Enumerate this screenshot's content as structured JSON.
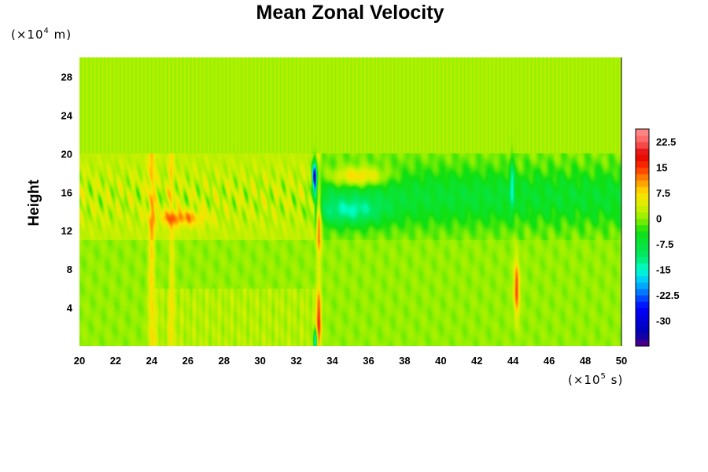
{
  "chart_data": {
    "type": "heatmap",
    "title": "Mean Zonal Velocity",
    "ylabel": "Height",
    "y_unit": {
      "prefix": "(×10",
      "exp": "4",
      "suffix": " m)"
    },
    "x_unit": {
      "prefix": "(×10",
      "exp": "5",
      "suffix": " s)"
    },
    "xlim": [
      20,
      50
    ],
    "ylim": [
      0,
      30
    ],
    "x_ticks": [
      "20",
      "22",
      "24",
      "26",
      "28",
      "30",
      "32",
      "34",
      "36",
      "38",
      "40",
      "42",
      "44",
      "46",
      "48",
      "50"
    ],
    "y_ticks": [
      "4",
      "8",
      "12",
      "16",
      "20",
      "24",
      "28"
    ],
    "colorbar": {
      "range": [
        -37.5,
        26.25
      ],
      "tick_labels": [
        "22.5",
        "15",
        "7.5",
        "0",
        "-7.5",
        "-15",
        "-22.5",
        "-30"
      ],
      "tick_values": [
        22.5,
        15,
        7.5,
        0,
        -7.5,
        -15,
        -22.5,
        -30
      ]
    },
    "colormap": [
      {
        "v": -37.5,
        "c": "#5a0080"
      },
      {
        "v": -33.75,
        "c": "#0000b0"
      },
      {
        "v": -26.25,
        "c": "#0000ff"
      },
      {
        "v": -18.75,
        "c": "#00c0ff"
      },
      {
        "v": -15,
        "c": "#00ffd0"
      },
      {
        "v": -11.25,
        "c": "#00e868"
      },
      {
        "v": -3.75,
        "c": "#10e010"
      },
      {
        "v": 0,
        "c": "#90f000"
      },
      {
        "v": 3.75,
        "c": "#d8f000"
      },
      {
        "v": 7.5,
        "c": "#ffe000"
      },
      {
        "v": 11.25,
        "c": "#ff9000"
      },
      {
        "v": 15,
        "c": "#ff3000"
      },
      {
        "v": 18.75,
        "c": "#e00000"
      },
      {
        "v": 22.5,
        "c": "#ff6060"
      },
      {
        "v": 26.25,
        "c": "#ff9090"
      }
    ],
    "features": [
      {
        "name": "upper-quiet-layer",
        "x": [
          20,
          50
        ],
        "y": [
          20,
          30
        ],
        "value": 1
      },
      {
        "name": "lower-quiet-layer",
        "x": [
          20,
          50
        ],
        "y": [
          0,
          11
        ],
        "value": 0
      },
      {
        "name": "jet-layer-early",
        "x": [
          20,
          33
        ],
        "y": [
          11,
          20
        ],
        "value": 2
      },
      {
        "name": "jet-layer-late",
        "x": [
          33.5,
          50
        ],
        "y": [
          11,
          20
        ],
        "value": -7
      },
      {
        "name": "eastward-maximum",
        "x": 35.5,
        "y": 17.5,
        "value": 14
      },
      {
        "name": "westward-minimum",
        "x": 34.5,
        "y": 14,
        "value": -15
      },
      {
        "name": "burst-33-west",
        "x": 33.0,
        "y": 18,
        "value": -30
      },
      {
        "name": "burst-33-east",
        "x": 33.2,
        "y": 10,
        "value": 16
      },
      {
        "name": "burst-44-east",
        "x": 44.2,
        "y": 6,
        "value": 15
      },
      {
        "name": "burst-25",
        "x": 24.8,
        "y": 13.5,
        "value": 12
      }
    ]
  }
}
